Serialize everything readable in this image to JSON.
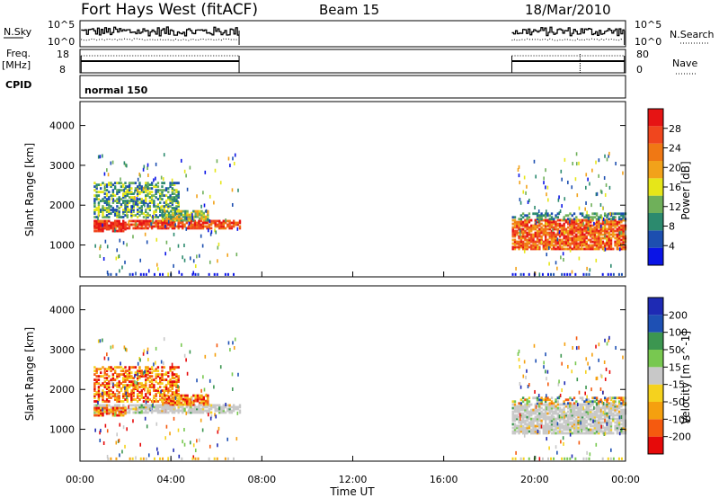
{
  "header": {
    "title": "Fort Hays West (fitACF)",
    "beam": "Beam 15",
    "date": "18/Mar/2010"
  },
  "top_panels": {
    "nsky_label": "N.Sky",
    "nsky_ticks": [
      "10^5",
      "10^0"
    ],
    "nsearch_label": "N.Search",
    "nsearch_ticks": [
      "10^5",
      "10^0"
    ],
    "freq_label": "Freq.",
    "freq_unit": "[MHz]",
    "freq_ticks": [
      "18",
      "8"
    ],
    "nave_label": "Nave",
    "nave_ticks": [
      "80",
      "0"
    ],
    "cpid_label": "CPID",
    "cpid_value": "normal 150"
  },
  "colors": {
    "power_scale": [
      "#0a14e6",
      "#1d4fb0",
      "#2c8a6e",
      "#6fb05a",
      "#e6e619",
      "#f2a21a",
      "#f07814",
      "#f0461e",
      "#e61414"
    ],
    "velocity_scale": [
      "#e60a0a",
      "#f55a0f",
      "#f5a00f",
      "#f5d21e",
      "#c8c8c8",
      "#78c850",
      "#3c9650",
      "#1e50b4",
      "#1e2ab4"
    ]
  },
  "chart_data": [
    {
      "type": "heatmap",
      "title": "",
      "xlabel": "",
      "ylabel": "Slant Range [km]",
      "xlim_hours": [
        0,
        24
      ],
      "ylim": [
        200,
        4600
      ],
      "y_ticks": [
        "1000",
        "2000",
        "3000",
        "4000"
      ],
      "colorbar": {
        "label": "Power [dB]",
        "range": [
          0,
          32
        ],
        "ticks": [
          "4",
          "8",
          "12",
          "16",
          "20",
          "24",
          "28"
        ]
      },
      "regions": [
        {
          "t_start": 0.5,
          "t_end": 7.0,
          "range_km": [
            1300,
            1700
          ],
          "level": "high"
        },
        {
          "t_start": 0.5,
          "t_end": 4.3,
          "range_km": [
            1700,
            2600
          ],
          "level": "low-mid"
        },
        {
          "t_start": 3.5,
          "t_end": 5.6,
          "range_km": [
            1600,
            1850
          ],
          "level": "mid"
        },
        {
          "t_start": 19.0,
          "t_end": 24.0,
          "range_km": [
            800,
            1700
          ],
          "level": "high"
        }
      ]
    },
    {
      "type": "heatmap",
      "title": "",
      "xlabel": "Time UT",
      "ylabel": "Slant Range [km]",
      "xlim_hours": [
        0,
        24
      ],
      "x_ticks": [
        "00:00",
        "04:00",
        "08:00",
        "12:00",
        "16:00",
        "20:00",
        "00:00"
      ],
      "ylim": [
        200,
        4600
      ],
      "y_ticks": [
        "1000",
        "2000",
        "3000",
        "4000"
      ],
      "colorbar": {
        "label": "Velocity [m s^-1]",
        "range": [
          -250,
          250
        ],
        "ticks": [
          "200",
          "100",
          "50",
          "15",
          "-15",
          "-50",
          "-100",
          "-200"
        ]
      },
      "regions": [
        {
          "t_start": 0.5,
          "t_end": 7.0,
          "range_km": [
            1300,
            1700
          ],
          "level": "ground scatter"
        },
        {
          "t_start": 0.5,
          "t_end": 4.3,
          "range_km": [
            1900,
            2600
          ],
          "level": "negative"
        },
        {
          "t_start": 19.0,
          "t_end": 24.0,
          "range_km": [
            800,
            1700
          ],
          "level": "ground scatter"
        }
      ]
    }
  ]
}
